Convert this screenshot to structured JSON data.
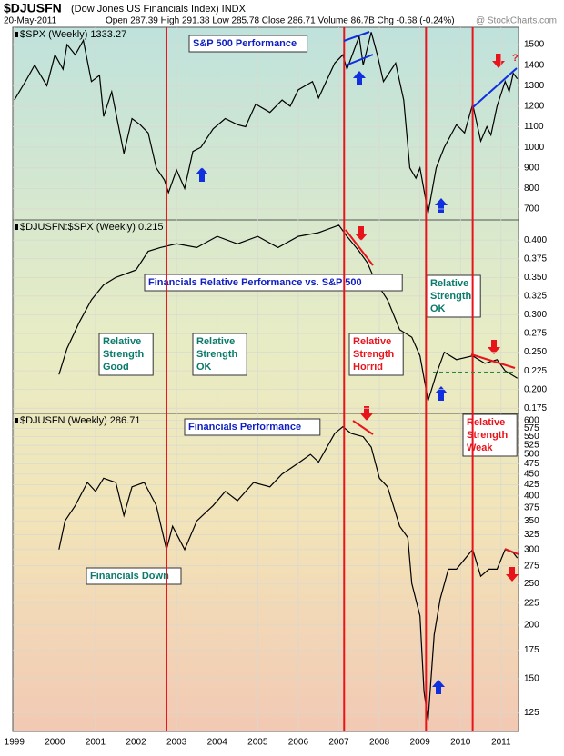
{
  "header": {
    "symbol": "$DJUSFN",
    "description": "(Dow Jones US Financials Index) INDX",
    "date": "20-May-2011",
    "quote": "Open 287.39 High 291.38 Low 285.78 Close 286.71 Volume 86.7B Chg -0.68 (-0.24%)",
    "source": "@ StockCharts.com"
  },
  "x_axis": {
    "xlim": [
      1998.96,
      2011.43
    ],
    "xticks": [
      1999,
      2000,
      2001,
      2002,
      2003,
      2004,
      2005,
      2006,
      2007,
      2008,
      2009,
      2010,
      2011
    ],
    "event_lines": [
      2002.75,
      2007.13,
      2009.15,
      2010.3
    ],
    "event_color": "#e8141c"
  },
  "chart_data": [
    {
      "type": "line",
      "legend": "$SPX (Weekly) 1333.27",
      "color": "#000000",
      "grid": true,
      "x": [
        1999.0,
        1999.3,
        1999.5,
        1999.8,
        2000.0,
        2000.2,
        2000.3,
        2000.5,
        2000.7,
        2000.9,
        2001.1,
        2001.2,
        2001.4,
        2001.7,
        2001.9,
        2002.1,
        2002.3,
        2002.5,
        2002.7,
        2002.8,
        2003.0,
        2003.2,
        2003.4,
        2003.6,
        2003.9,
        2004.2,
        2004.5,
        2004.7,
        2004.95,
        2005.3,
        2005.6,
        2005.8,
        2006.0,
        2006.35,
        2006.5,
        2006.9,
        2007.1,
        2007.2,
        2007.5,
        2007.6,
        2007.8,
        2007.95,
        2008.1,
        2008.4,
        2008.6,
        2008.75,
        2008.9,
        2009.0,
        2009.2,
        2009.4,
        2009.6,
        2009.9,
        2010.1,
        2010.3,
        2010.5,
        2010.65,
        2010.75,
        2010.9,
        2011.1,
        2011.2,
        2011.3,
        2011.4
      ],
      "values": [
        1230,
        1330,
        1400,
        1300,
        1450,
        1380,
        1500,
        1450,
        1520,
        1320,
        1350,
        1150,
        1270,
        970,
        1140,
        1110,
        1070,
        900,
        840,
        780,
        890,
        800,
        980,
        1000,
        1090,
        1140,
        1110,
        1100,
        1210,
        1170,
        1230,
        1200,
        1280,
        1320,
        1240,
        1410,
        1450,
        1380,
        1540,
        1400,
        1560,
        1450,
        1320,
        1410,
        1230,
        900,
        850,
        900,
        680,
        900,
        1000,
        1110,
        1070,
        1210,
        1030,
        1100,
        1060,
        1200,
        1320,
        1270,
        1360,
        1333.27
      ],
      "ylim": [
        647,
        1584
      ],
      "yticks": [
        700,
        800,
        900,
        1000,
        1100,
        1200,
        1300,
        1400,
        1500
      ],
      "annotations": [
        {
          "lines": [
            "S&P 500 Performance"
          ],
          "color": "#1020c0"
        },
        {
          "lines": [
            "?"
          ],
          "color": "#e8141c"
        }
      ]
    },
    {
      "type": "line",
      "legend": "$DJUSFN:$SPX (Weekly) 0.215",
      "color": "#000000",
      "grid": true,
      "x": [
        2000.1,
        2000.3,
        2000.6,
        2000.9,
        2001.2,
        2001.5,
        2002.0,
        2002.3,
        2002.6,
        2003.0,
        2003.5,
        2004.0,
        2004.5,
        2005.0,
        2005.5,
        2006.0,
        2006.5,
        2007.0,
        2007.2,
        2007.5,
        2007.7,
        2007.9,
        2008.2,
        2008.5,
        2008.8,
        2009.0,
        2009.2,
        2009.4,
        2009.6,
        2009.9,
        2010.3,
        2010.6,
        2010.9,
        2011.1,
        2011.4
      ],
      "values": [
        0.22,
        0.255,
        0.29,
        0.32,
        0.34,
        0.35,
        0.36,
        0.385,
        0.39,
        0.395,
        0.39,
        0.405,
        0.395,
        0.405,
        0.39,
        0.405,
        0.41,
        0.42,
        0.405,
        0.385,
        0.37,
        0.345,
        0.32,
        0.28,
        0.27,
        0.245,
        0.185,
        0.22,
        0.25,
        0.24,
        0.245,
        0.235,
        0.24,
        0.225,
        0.215
      ],
      "ylim": [
        0.168,
        0.427
      ],
      "yticks": [
        {
          "value": 0.175,
          "label": "0.175"
        },
        {
          "value": 0.2,
          "label": "0.200"
        },
        {
          "value": 0.225,
          "label": "0.225"
        },
        {
          "value": 0.25,
          "label": "0.250"
        },
        {
          "value": 0.275,
          "label": "0.275"
        },
        {
          "value": 0.3,
          "label": "0.300"
        },
        {
          "value": 0.325,
          "label": "0.325"
        },
        {
          "value": 0.35,
          "label": "0.350"
        },
        {
          "value": 0.375,
          "label": "0.375"
        },
        {
          "value": 0.4,
          "label": "0.400"
        }
      ],
      "annotations": [
        {
          "lines": [
            "Financials Relative Performance vs. S&P 500"
          ],
          "color": "#1020c0"
        },
        {
          "lines": [
            "Relative",
            "Strength",
            "Good"
          ],
          "color": "#0a7a6a"
        },
        {
          "lines": [
            "Relative",
            "Strength",
            "OK"
          ],
          "color": "#0a7a6a"
        },
        {
          "lines": [
            "Relative",
            "Strength",
            "Horrid"
          ],
          "color": "#e8141c"
        },
        {
          "lines": [
            "Relative",
            "Strength",
            "OK"
          ],
          "color": "#0a7a6a"
        }
      ]
    },
    {
      "type": "line",
      "legend": "$DJUSFN (Weekly) 286.71",
      "color": "#000000",
      "grid": true,
      "log": true,
      "x": [
        2000.1,
        2000.25,
        2000.5,
        2000.8,
        2001.0,
        2001.2,
        2001.5,
        2001.7,
        2001.9,
        2002.2,
        2002.5,
        2002.75,
        2002.9,
        2003.2,
        2003.5,
        2003.9,
        2004.2,
        2004.5,
        2004.9,
        2005.3,
        2005.6,
        2005.9,
        2006.3,
        2006.5,
        2006.9,
        2007.1,
        2007.3,
        2007.6,
        2007.8,
        2008.0,
        2008.2,
        2008.5,
        2008.7,
        2008.8,
        2009.0,
        2009.1,
        2009.2,
        2009.35,
        2009.5,
        2009.7,
        2009.9,
        2010.3,
        2010.5,
        2010.7,
        2010.9,
        2011.1,
        2011.3,
        2011.4
      ],
      "values": [
        300,
        350,
        380,
        430,
        410,
        440,
        430,
        360,
        420,
        430,
        380,
        300,
        340,
        300,
        350,
        380,
        410,
        390,
        430,
        420,
        450,
        470,
        500,
        480,
        560,
        580,
        560,
        550,
        520,
        440,
        420,
        340,
        320,
        250,
        210,
        140,
        120,
        190,
        230,
        270,
        270,
        300,
        260,
        270,
        270,
        300,
        295,
        286.71
      ],
      "ylim": [
        113,
        623
      ],
      "yticks": [
        125,
        150,
        175,
        200,
        225,
        250,
        275,
        300,
        325,
        350,
        375,
        400,
        425,
        450,
        475,
        500,
        525,
        550,
        575,
        600
      ],
      "annotations": [
        {
          "lines": [
            "Financials Performance"
          ],
          "color": "#1020c0"
        },
        {
          "lines": [
            "Relative",
            "Strength",
            "Weak"
          ],
          "color": "#e8141c"
        },
        {
          "lines": [
            "Financials Down"
          ],
          "color": "#0a7a6a"
        }
      ]
    }
  ]
}
